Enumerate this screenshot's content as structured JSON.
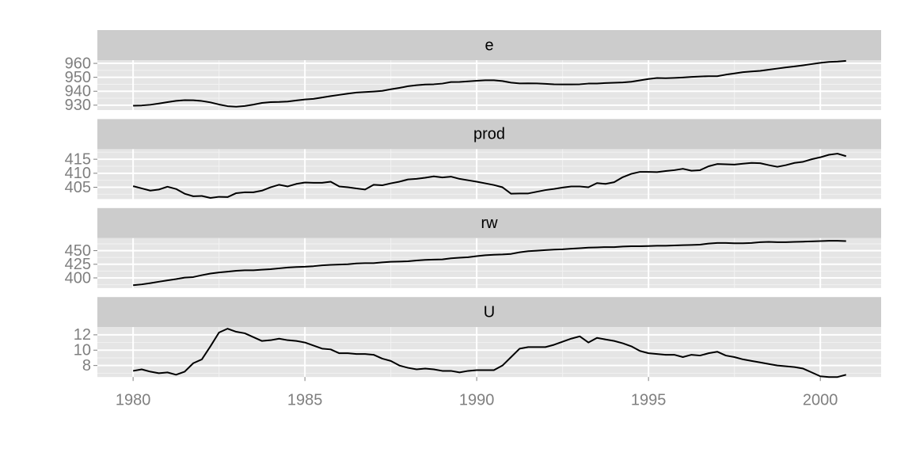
{
  "chart_data": [
    {
      "type": "line",
      "title": "e",
      "color": "#000000",
      "x": [
        1980,
        1980.25,
        1980.5,
        1980.75,
        1981,
        1981.25,
        1981.5,
        1981.75,
        1982,
        1982.25,
        1982.5,
        1982.75,
        1983,
        1983.25,
        1983.5,
        1983.75,
        1984,
        1984.25,
        1984.5,
        1984.75,
        1985,
        1985.25,
        1985.5,
        1985.75,
        1986,
        1986.25,
        1986.5,
        1986.75,
        1987,
        1987.25,
        1987.5,
        1987.75,
        1988,
        1988.25,
        1988.5,
        1988.75,
        1989,
        1989.25,
        1989.5,
        1989.75,
        1990,
        1990.25,
        1990.5,
        1990.75,
        1991,
        1991.25,
        1991.5,
        1991.75,
        1992,
        1992.25,
        1992.5,
        1992.75,
        1993,
        1993.25,
        1993.5,
        1993.75,
        1994,
        1994.25,
        1994.5,
        1994.75,
        1995,
        1995.25,
        1995.5,
        1995.75,
        1996,
        1996.25,
        1996.5,
        1996.75,
        1997,
        1997.25,
        1997.5,
        1997.75,
        1998,
        1998.25,
        1998.5,
        1998.75,
        1999,
        1999.25,
        1999.5,
        1999.75,
        2000,
        2000.25,
        2000.5,
        2000.75
      ],
      "values": [
        929.6,
        929.8,
        930.3,
        931.2,
        932.2,
        933.1,
        933.6,
        933.5,
        933.0,
        932.0,
        930.5,
        929.3,
        928.9,
        929.4,
        930.4,
        931.6,
        932.2,
        932.3,
        932.6,
        933.4,
        934.1,
        934.5,
        935.5,
        936.5,
        937.4,
        938.3,
        939.1,
        939.4,
        939.8,
        940.3,
        941.4,
        942.4,
        943.6,
        944.3,
        944.8,
        945.0,
        945.5,
        946.6,
        946.7,
        947.1,
        947.5,
        947.9,
        947.9,
        947.3,
        946.2,
        945.6,
        945.7,
        945.6,
        945.3,
        945.0,
        944.9,
        944.9,
        945.0,
        945.5,
        945.5,
        945.9,
        946.1,
        946.3,
        946.8,
        947.8,
        948.8,
        949.5,
        949.4,
        949.6,
        949.9,
        950.3,
        950.6,
        950.8,
        950.8,
        951.9,
        952.8,
        953.7,
        954.2,
        954.6,
        955.5,
        956.3,
        957.1,
        957.8,
        958.6,
        959.5,
        960.4,
        961.0,
        961.3,
        961.8
      ],
      "xlim": [
        1978.96,
        2001.77
      ],
      "ylim": [
        926.5,
        962.3
      ],
      "yticks": [
        930,
        940,
        950,
        960
      ],
      "grid": true
    },
    {
      "type": "line",
      "title": "prod",
      "color": "#000000",
      "x": [
        1980,
        1980.25,
        1980.5,
        1980.75,
        1981,
        1981.25,
        1981.5,
        1981.75,
        1982,
        1982.25,
        1982.5,
        1982.75,
        1983,
        1983.25,
        1983.5,
        1983.75,
        1984,
        1984.25,
        1984.5,
        1984.75,
        1985,
        1985.25,
        1985.5,
        1985.75,
        1986,
        1986.25,
        1986.5,
        1986.75,
        1987,
        1987.25,
        1987.5,
        1987.75,
        1988,
        1988.25,
        1988.5,
        1988.75,
        1989,
        1989.25,
        1989.5,
        1989.75,
        1990,
        1990.25,
        1990.5,
        1990.75,
        1991,
        1991.25,
        1991.5,
        1991.75,
        1992,
        1992.25,
        1992.5,
        1992.75,
        1993,
        1993.25,
        1993.5,
        1993.75,
        1994,
        1994.25,
        1994.5,
        1994.75,
        1995,
        1995.25,
        1995.5,
        1995.75,
        1996,
        1996.25,
        1996.5,
        1996.75,
        1997,
        1997.25,
        1997.5,
        1997.75,
        1998,
        1998.25,
        1998.5,
        1998.75,
        1999,
        1999.25,
        1999.5,
        1999.75,
        2000,
        2000.25,
        2000.5,
        2000.75
      ],
      "values": [
        405.4,
        404.6,
        403.8,
        404.2,
        405.2,
        404.4,
        402.7,
        401.8,
        401.9,
        401.2,
        401.6,
        401.5,
        402.9,
        403.2,
        403.2,
        403.8,
        405.0,
        405.9,
        405.3,
        406.2,
        406.7,
        406.6,
        406.6,
        407.0,
        405.3,
        405.0,
        404.6,
        404.2,
        405.9,
        405.7,
        406.4,
        407.0,
        407.8,
        408.0,
        408.4,
        408.9,
        408.5,
        408.8,
        408.0,
        407.5,
        407.0,
        406.4,
        405.8,
        405.0,
        402.7,
        402.8,
        402.8,
        403.4,
        404.0,
        404.4,
        404.9,
        405.3,
        405.3,
        405.0,
        406.5,
        406.2,
        406.8,
        408.6,
        409.8,
        410.5,
        410.5,
        410.4,
        410.8,
        411.1,
        411.6,
        410.9,
        411.1,
        412.5,
        413.3,
        413.2,
        413.1,
        413.4,
        413.7,
        413.6,
        412.9,
        412.3,
        412.9,
        413.7,
        414.1,
        415.0,
        415.7,
        416.6,
        417.0,
        416.1
      ],
      "xlim": [
        1978.96,
        2001.77
      ],
      "ylim": [
        400.8,
        418.6
      ],
      "yticks": [
        405,
        410,
        415
      ],
      "grid": true
    },
    {
      "type": "line",
      "title": "rw",
      "color": "#000000",
      "x": [
        1980,
        1980.25,
        1980.5,
        1980.75,
        1981,
        1981.25,
        1981.5,
        1981.75,
        1982,
        1982.25,
        1982.5,
        1982.75,
        1983,
        1983.25,
        1983.5,
        1983.75,
        1984,
        1984.25,
        1984.5,
        1984.75,
        1985,
        1985.25,
        1985.5,
        1985.75,
        1986,
        1986.25,
        1986.5,
        1986.75,
        1987,
        1987.25,
        1987.5,
        1987.75,
        1988,
        1988.25,
        1988.5,
        1988.75,
        1989,
        1989.25,
        1989.5,
        1989.75,
        1990,
        1990.25,
        1990.5,
        1990.75,
        1991,
        1991.25,
        1991.5,
        1991.75,
        1992,
        1992.25,
        1992.5,
        1992.75,
        1993,
        1993.25,
        1993.5,
        1993.75,
        1994,
        1994.25,
        1994.5,
        1994.75,
        1995,
        1995.25,
        1995.5,
        1995.75,
        1996,
        1996.25,
        1996.5,
        1996.75,
        1997,
        1997.25,
        1997.5,
        1997.75,
        1998,
        1998.25,
        1998.5,
        1998.75,
        1999,
        1999.25,
        1999.5,
        1999.75,
        2000,
        2000.25,
        2000.5,
        2000.75
      ],
      "values": [
        386.5,
        388.1,
        390.3,
        393.0,
        395.5,
        397.8,
        400.5,
        401.5,
        405.0,
        408.0,
        410.0,
        411.5,
        413.0,
        414.0,
        414.0,
        415.0,
        416.0,
        417.5,
        419.0,
        420.0,
        420.5,
        421.5,
        423.0,
        424.0,
        424.5,
        425.0,
        426.5,
        427.0,
        427.0,
        428.5,
        429.5,
        430.0,
        430.5,
        432.0,
        433.0,
        433.5,
        434.0,
        436.0,
        437.0,
        438.0,
        440.0,
        441.5,
        442.5,
        443.0,
        444.0,
        447.0,
        449.0,
        450.0,
        451.0,
        452.0,
        452.5,
        453.5,
        454.5,
        455.5,
        456.0,
        456.5,
        456.5,
        457.5,
        458.0,
        458.0,
        458.5,
        459.0,
        459.0,
        459.5,
        460.0,
        460.5,
        461.0,
        463.0,
        464.0,
        464.0,
        463.5,
        463.5,
        464.0,
        465.5,
        466.0,
        465.5,
        465.5,
        466.0,
        466.5,
        467.0,
        467.5,
        468.0,
        468.0,
        467.5
      ],
      "xlim": [
        1978.96,
        2001.77
      ],
      "ylim": [
        381.4,
        472.9
      ],
      "yticks": [
        400,
        425,
        450
      ],
      "grid": true
    },
    {
      "type": "line",
      "title": "U",
      "color": "#000000",
      "x": [
        1980,
        1980.25,
        1980.5,
        1980.75,
        1981,
        1981.25,
        1981.5,
        1981.75,
        1982,
        1982.25,
        1982.5,
        1982.75,
        1983,
        1983.25,
        1983.5,
        1983.75,
        1984,
        1984.25,
        1984.5,
        1984.75,
        1985,
        1985.25,
        1985.5,
        1985.75,
        1986,
        1986.25,
        1986.5,
        1986.75,
        1987,
        1987.25,
        1987.5,
        1987.75,
        1988,
        1988.25,
        1988.5,
        1988.75,
        1989,
        1989.25,
        1989.5,
        1989.75,
        1990,
        1990.25,
        1990.5,
        1990.75,
        1991,
        1991.25,
        1991.5,
        1991.75,
        1992,
        1992.25,
        1992.5,
        1992.75,
        1993,
        1993.25,
        1993.5,
        1993.75,
        1994,
        1994.25,
        1994.5,
        1994.75,
        1995,
        1995.25,
        1995.5,
        1995.75,
        1996,
        1996.25,
        1996.5,
        1996.75,
        1997,
        1997.25,
        1997.5,
        1997.75,
        1998,
        1998.25,
        1998.5,
        1998.75,
        1999,
        1999.25,
        1999.5,
        1999.75,
        2000,
        2000.25,
        2000.5,
        2000.75
      ],
      "values": [
        7.3,
        7.5,
        7.2,
        7.0,
        7.1,
        6.8,
        7.2,
        8.3,
        8.8,
        10.5,
        12.3,
        12.8,
        12.4,
        12.2,
        11.7,
        11.2,
        11.3,
        11.5,
        11.3,
        11.2,
        11.0,
        10.6,
        10.2,
        10.1,
        9.6,
        9.6,
        9.5,
        9.5,
        9.4,
        8.9,
        8.6,
        8.0,
        7.7,
        7.5,
        7.6,
        7.5,
        7.3,
        7.3,
        7.1,
        7.3,
        7.4,
        7.4,
        7.4,
        8.0,
        9.1,
        10.2,
        10.4,
        10.4,
        10.4,
        10.7,
        11.1,
        11.5,
        11.8,
        11.0,
        11.6,
        11.4,
        11.2,
        10.9,
        10.5,
        9.9,
        9.6,
        9.5,
        9.4,
        9.4,
        9.1,
        9.4,
        9.3,
        9.6,
        9.8,
        9.3,
        9.1,
        8.8,
        8.6,
        8.4,
        8.2,
        8.0,
        7.9,
        7.8,
        7.6,
        7.1,
        6.6,
        6.5,
        6.5,
        6.8
      ],
      "xlim": [
        1978.96,
        2001.77
      ],
      "ylim": [
        6.5,
        13.0
      ],
      "yticks": [
        8,
        10,
        12
      ],
      "xticks": [
        1980,
        1985,
        1990,
        1995,
        2000
      ],
      "grid": true
    }
  ]
}
